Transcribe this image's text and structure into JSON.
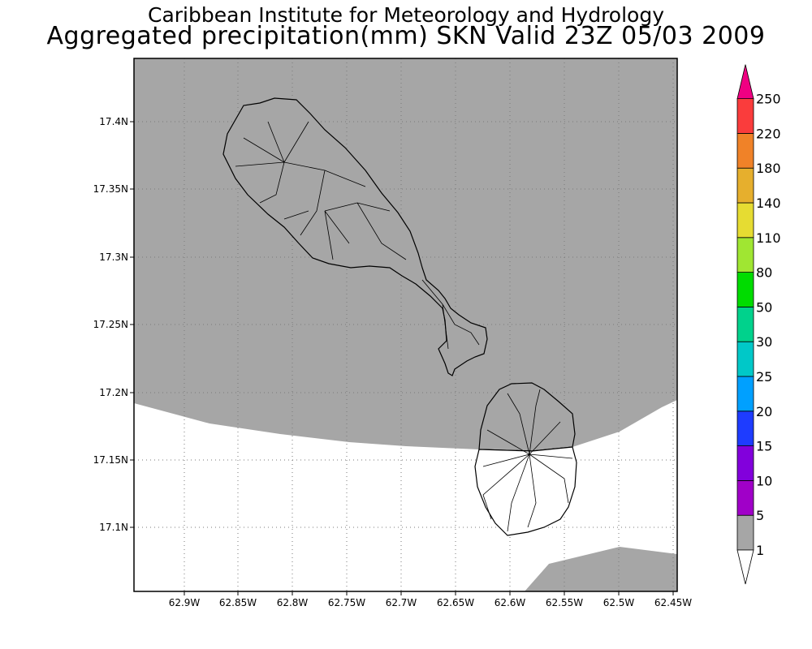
{
  "header": {
    "line1": "Caribbean Institute for Meteorology and Hydrology",
    "line2": "Aggregated precipitation(mm) SKN Valid 23Z 05/03 2009"
  },
  "map": {
    "lat_ticks": [
      "17.4N",
      "17.35N",
      "17.3N",
      "17.25N",
      "17.2N",
      "17.15N",
      "17.1N"
    ],
    "lon_ticks": [
      "62.9W",
      "62.85W",
      "62.8W",
      "62.75W",
      "62.7W",
      "62.65W",
      "62.6W",
      "62.55W",
      "62.5W",
      "62.45W"
    ],
    "grid": "dotted",
    "fill_colors": {
      "high_band": "#a6a6a6",
      "low_band": "#ffffff"
    }
  },
  "legend": {
    "placement": "right",
    "labels": [
      "1",
      "5",
      "10",
      "15",
      "20",
      "25",
      "30",
      "50",
      "80",
      "110",
      "140",
      "180",
      "220",
      "250"
    ],
    "colors": [
      "#a6a6a6",
      "#a000c8",
      "#8200dc",
      "#1e3cff",
      "#00a0ff",
      "#00c8c8",
      "#00d28c",
      "#00dc00",
      "#a0e632",
      "#e6dc32",
      "#e6af2d",
      "#f08228",
      "#fa3c3c",
      "#f00082"
    ]
  }
}
